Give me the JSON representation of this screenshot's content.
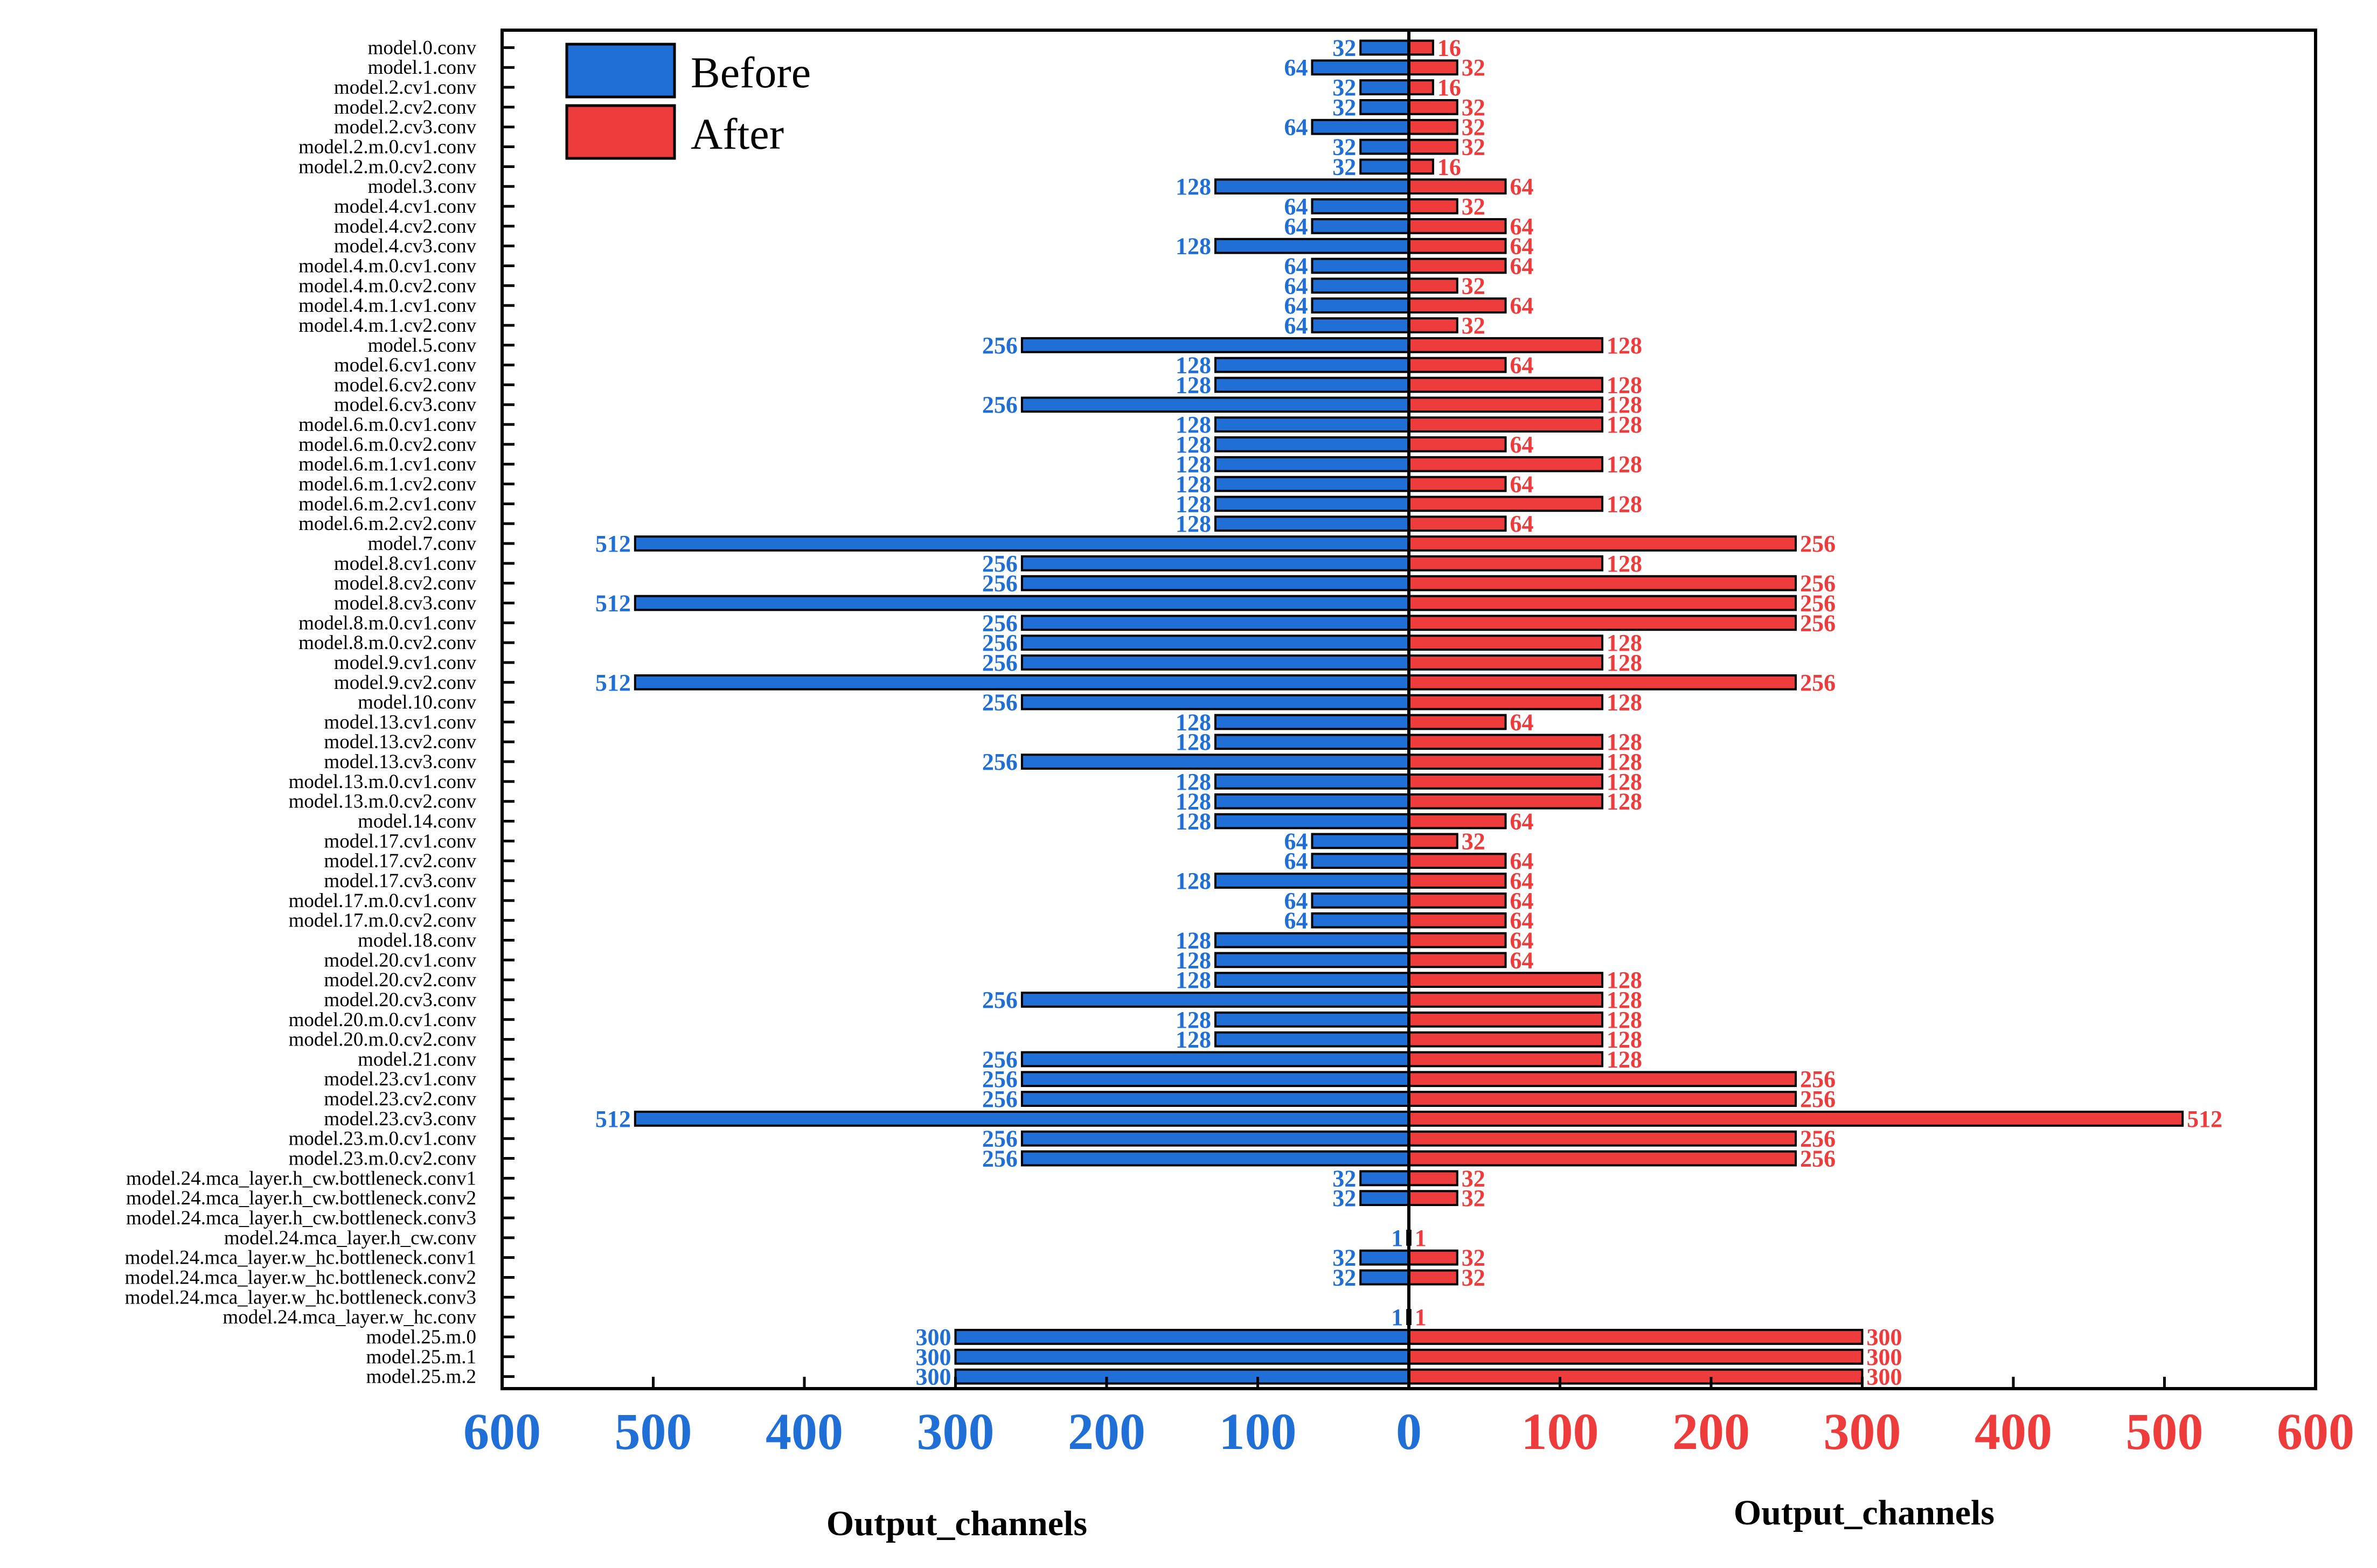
{
  "chart_data": {
    "type": "bar",
    "orientation": "horizontal-butterfly",
    "categories": [
      "model.0.conv",
      "model.1.conv",
      "model.2.cv1.conv",
      "model.2.cv2.conv",
      "model.2.cv3.conv",
      "model.2.m.0.cv1.conv",
      "model.2.m.0.cv2.conv",
      "model.3.conv",
      "model.4.cv1.conv",
      "model.4.cv2.conv",
      "model.4.cv3.conv",
      "model.4.m.0.cv1.conv",
      "model.4.m.0.cv2.conv",
      "model.4.m.1.cv1.conv",
      "model.4.m.1.cv2.conv",
      "model.5.conv",
      "model.6.cv1.conv",
      "model.6.cv2.conv",
      "model.6.cv3.conv",
      "model.6.m.0.cv1.conv",
      "model.6.m.0.cv2.conv",
      "model.6.m.1.cv1.conv",
      "model.6.m.1.cv2.conv",
      "model.6.m.2.cv1.conv",
      "model.6.m.2.cv2.conv",
      "model.7.conv",
      "model.8.cv1.conv",
      "model.8.cv2.conv",
      "model.8.cv3.conv",
      "model.8.m.0.cv1.conv",
      "model.8.m.0.cv2.conv",
      "model.9.cv1.conv",
      "model.9.cv2.conv",
      "model.10.conv",
      "model.13.cv1.conv",
      "model.13.cv2.conv",
      "model.13.cv3.conv",
      "model.13.m.0.cv1.conv",
      "model.13.m.0.cv2.conv",
      "model.14.conv",
      "model.17.cv1.conv",
      "model.17.cv2.conv",
      "model.17.cv3.conv",
      "model.17.m.0.cv1.conv",
      "model.17.m.0.cv2.conv",
      "model.18.conv",
      "model.20.cv1.conv",
      "model.20.cv2.conv",
      "model.20.cv3.conv",
      "model.20.m.0.cv1.conv",
      "model.20.m.0.cv2.conv",
      "model.21.conv",
      "model.23.cv1.conv",
      "model.23.cv2.conv",
      "model.23.cv3.conv",
      "model.23.m.0.cv1.conv",
      "model.23.m.0.cv2.conv",
      "model.24.mca_layer.h_cw.bottleneck.conv1",
      "model.24.mca_layer.h_cw.bottleneck.conv2",
      "model.24.mca_layer.h_cw.bottleneck.conv3",
      "model.24.mca_layer.h_cw.conv",
      "model.24.mca_layer.w_hc.bottleneck.conv1",
      "model.24.mca_layer.w_hc.bottleneck.conv2",
      "model.24.mca_layer.w_hc.bottleneck.conv3",
      "model.24.mca_layer.w_hc.conv",
      "model.25.m.0",
      "model.25.m.1",
      "model.25.m.2"
    ],
    "series": [
      {
        "name": "Before",
        "color": "#1f6fd6",
        "side": "left",
        "values": [
          32,
          64,
          32,
          32,
          64,
          32,
          32,
          128,
          64,
          64,
          128,
          64,
          64,
          64,
          64,
          256,
          128,
          128,
          256,
          128,
          128,
          128,
          128,
          128,
          128,
          512,
          256,
          256,
          512,
          256,
          256,
          256,
          512,
          256,
          128,
          128,
          256,
          128,
          128,
          128,
          64,
          64,
          128,
          64,
          64,
          128,
          128,
          128,
          256,
          128,
          128,
          256,
          256,
          256,
          512,
          256,
          256,
          32,
          32,
          null,
          1,
          32,
          32,
          null,
          1,
          300,
          300,
          300
        ]
      },
      {
        "name": "After",
        "color": "#ee3b3b",
        "side": "right",
        "values": [
          16,
          32,
          16,
          32,
          32,
          32,
          16,
          64,
          32,
          64,
          64,
          64,
          32,
          64,
          32,
          128,
          64,
          128,
          128,
          128,
          64,
          128,
          64,
          128,
          64,
          256,
          128,
          256,
          256,
          256,
          128,
          128,
          256,
          128,
          64,
          128,
          128,
          128,
          128,
          64,
          32,
          64,
          64,
          64,
          64,
          64,
          64,
          128,
          128,
          128,
          128,
          128,
          256,
          256,
          512,
          256,
          256,
          32,
          32,
          null,
          1,
          32,
          32,
          null,
          1,
          300,
          300,
          300
        ]
      }
    ],
    "left_axis": {
      "range": [
        600,
        0
      ],
      "ticks": [
        600,
        500,
        400,
        300,
        200,
        100,
        0
      ],
      "label": "Output_channels",
      "tick_color": "#1f6fd6"
    },
    "right_axis": {
      "range": [
        0,
        600
      ],
      "ticks": [
        0,
        100,
        200,
        300,
        400,
        500,
        600
      ],
      "label": "Output_channels",
      "tick_color": "#ee3b3b"
    },
    "legend": {
      "position": "top-left",
      "entries": [
        "Before",
        "After"
      ]
    },
    "grid": false,
    "title": ""
  }
}
